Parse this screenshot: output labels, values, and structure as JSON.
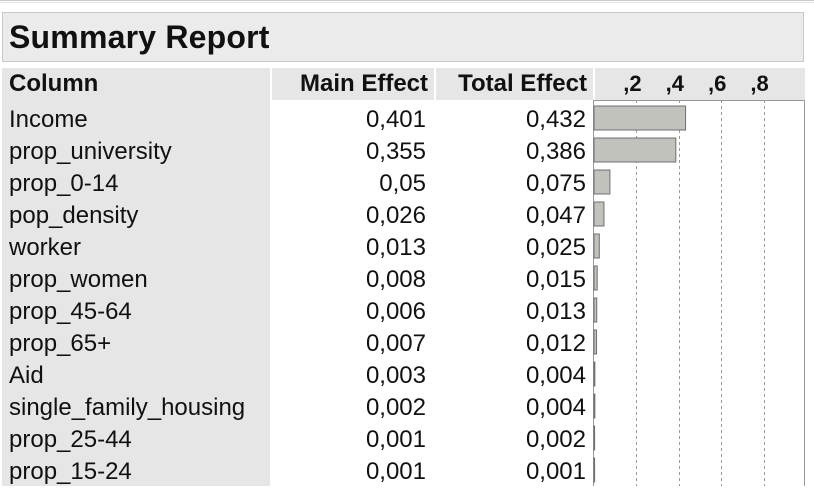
{
  "report": {
    "title": "Summary Report",
    "headers": {
      "column": "Column",
      "main_effect": "Main Effect",
      "total_effect": "Total Effect"
    },
    "rows": [
      {
        "column": "Income",
        "main": "0,401",
        "total": "0,432"
      },
      {
        "column": "prop_university",
        "main": "0,355",
        "total": "0,386"
      },
      {
        "column": "prop_0-14",
        "main": "0,05",
        "total": "0,075"
      },
      {
        "column": "pop_density",
        "main": "0,026",
        "total": "0,047"
      },
      {
        "column": "worker",
        "main": "0,013",
        "total": "0,025"
      },
      {
        "column": "prop_women",
        "main": "0,008",
        "total": "0,015"
      },
      {
        "column": "prop_45-64",
        "main": "0,006",
        "total": "0,013"
      },
      {
        "column": "prop_65+",
        "main": "0,007",
        "total": "0,012"
      },
      {
        "column": "Aid",
        "main": "0,003",
        "total": "0,004"
      },
      {
        "column": "single_family_housing",
        "main": "0,002",
        "total": "0,004"
      },
      {
        "column": "prop_25-44",
        "main": "0,001",
        "total": "0,002"
      },
      {
        "column": "prop_15-24",
        "main": "0,001",
        "total": "0,001"
      }
    ]
  },
  "chart_data": {
    "type": "bar",
    "orientation": "horizontal",
    "categories": [
      "Income",
      "prop_university",
      "prop_0-14",
      "pop_density",
      "worker",
      "prop_women",
      "prop_45-64",
      "prop_65+",
      "Aid",
      "single_family_housing",
      "prop_25-44",
      "prop_15-24"
    ],
    "values": [
      0.432,
      0.386,
      0.075,
      0.047,
      0.025,
      0.015,
      0.013,
      0.012,
      0.004,
      0.004,
      0.002,
      0.001
    ],
    "tick_labels": [
      ",2",
      ",4",
      ",6",
      ",8"
    ],
    "tick_values": [
      0.2,
      0.4,
      0.6,
      0.8
    ],
    "xlim": [
      0,
      1
    ],
    "grid": true,
    "bar_color": "#c2c2bd",
    "grid_color": "#9a9a9a"
  }
}
